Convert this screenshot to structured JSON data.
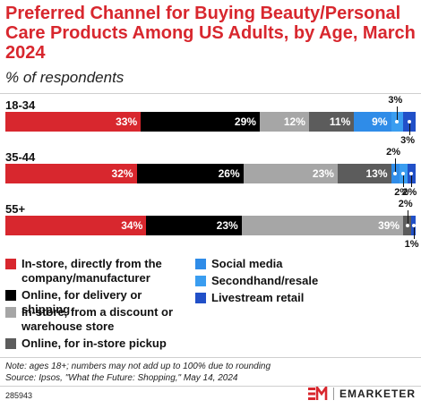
{
  "title": "Preferred Channel for Buying Beauty/Personal Care Products Among US Adults, by Age, March 2024",
  "subtitle": "% of respondents",
  "chart_data": {
    "type": "bar",
    "stacked": true,
    "orientation": "horizontal",
    "categories": [
      "18-34",
      "35-44",
      "55+"
    ],
    "series": [
      {
        "name": "In-store, directly from the company/manufacturer",
        "color": "#d8272e",
        "values": [
          33,
          32,
          34
        ]
      },
      {
        "name": "Online, for delivery or shipping",
        "color": "#000000",
        "values": [
          29,
          26,
          23
        ]
      },
      {
        "name": "In-store, from a discount or warehouse store",
        "color": "#a6a6a6",
        "values": [
          12,
          23,
          39
        ]
      },
      {
        "name": "Online, for in-store pickup",
        "color": "#5c5c5c",
        "values": [
          11,
          13,
          2
        ]
      },
      {
        "name": "Social media",
        "color": "#2f8ce8",
        "values": [
          9,
          2,
          0
        ]
      },
      {
        "name": "Secondhand/resale",
        "color": "#3a9df0",
        "values": [
          3,
          2,
          0
        ]
      },
      {
        "name": "Livestream retail",
        "color": "#2150c8",
        "values": [
          3,
          2,
          1
        ]
      }
    ],
    "labels": [
      [
        "33%",
        "29%",
        "12%",
        "11%",
        "9%",
        "3%",
        "3%"
      ],
      [
        "32%",
        "26%",
        "23%",
        "13%",
        "2%",
        "2%",
        "2%"
      ],
      [
        "34%",
        "23%",
        "39%",
        "2%",
        "",
        "",
        "1%"
      ]
    ],
    "legend_position": "bottom",
    "grid": false
  },
  "note": "Note: ages 18+; numbers may not add up to 100% due to rounding",
  "source": "Source: Ipsos, \"What the Future: Shopping,\" May 14, 2024",
  "chart_id": "285943",
  "brand": "EMARKETER"
}
